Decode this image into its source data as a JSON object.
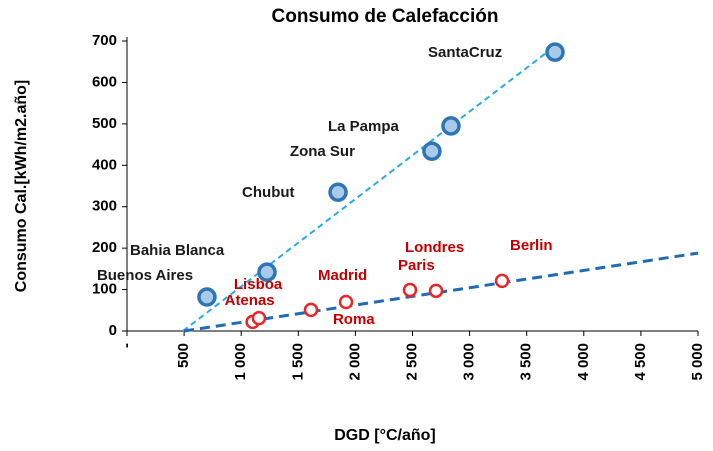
{
  "chart_data": {
    "type": "scatter",
    "title": "Consumo de Calefacción",
    "x_label": "DGD [°C/año]",
    "y_label": "Consumo Cal.[kWh/m2.año]",
    "xlim": [
      0,
      5000
    ],
    "ylim": [
      0,
      700
    ],
    "xticks": [
      {
        "value": 0,
        "label": "-"
      },
      500,
      {
        "value": 1000,
        "label": "1 000"
      },
      {
        "value": 1500,
        "label": "1 500"
      },
      {
        "value": 2000,
        "label": "2 000"
      },
      {
        "value": 2500,
        "label": "2 500"
      },
      {
        "value": 3000,
        "label": "3 000"
      },
      {
        "value": 3500,
        "label": "3 500"
      },
      {
        "value": 4000,
        "label": "4 000"
      },
      {
        "value": 4500,
        "label": "4 500"
      },
      {
        "value": 5000,
        "label": "5 000"
      }
    ],
    "yticks": [
      0,
      100,
      200,
      300,
      400,
      500,
      600,
      700
    ],
    "grid": false,
    "series": [
      {
        "color": "#2e75b6",
        "fill": "#a9cbe9",
        "labels": [
          "Buenos Aires",
          "Bahia Blanca",
          "Chubut",
          "Zona Sur",
          "La Pampa",
          "SantaCruz"
        ],
        "label_color": "#1a1a1a",
        "x": [
          700,
          1226,
          1848,
          2670,
          2837,
          3748
        ],
        "values": [
          82,
          142,
          335,
          434,
          495,
          673
        ],
        "trend": {
          "color": "#29abe2",
          "x": [
            490,
            3760
          ],
          "values": [
            0,
            690
          ]
        }
      },
      {
        "color": "#e8262a",
        "fill": "#ffffff",
        "labels": [
          "Atenas",
          "Lisboa",
          "Roma",
          "Madrid",
          "Paris",
          "Londres",
          "Berlin"
        ],
        "label_color": "#c00000",
        "x": [
          1100,
          1155,
          1611,
          1918,
          2478,
          2706,
          3284
        ],
        "values": [
          22,
          31,
          51,
          70,
          99,
          97,
          121
        ],
        "trend": {
          "color": "#1f6bb5",
          "x": [
            500,
            5000
          ],
          "values": [
            0,
            188
          ]
        }
      }
    ]
  }
}
